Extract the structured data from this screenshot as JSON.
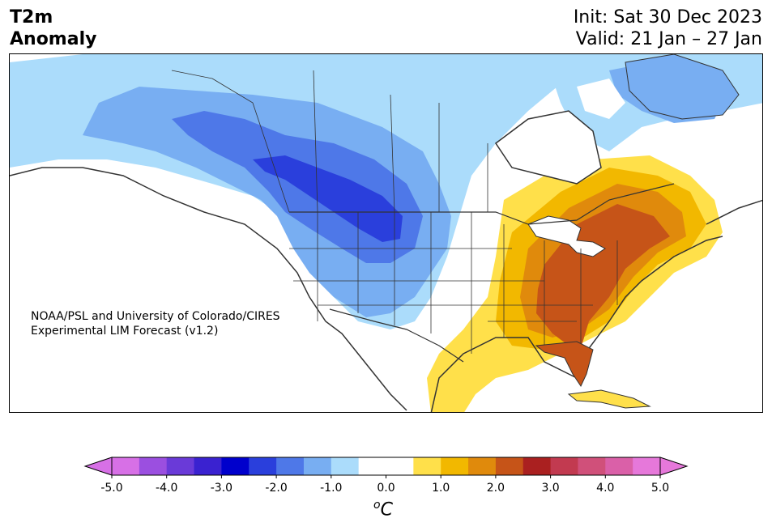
{
  "header": {
    "title_line1": "T2m",
    "title_line2": "Anomaly",
    "init": "Init: Sat 30 Dec 2023",
    "valid": "Valid: 21 Jan – 27 Jan"
  },
  "credit": {
    "line1": "NOAA/PSL and University of Colorado/CIRES",
    "line2": "Experimental LIM Forecast (v1.2)"
  },
  "colorbar": {
    "unit_sup": "o",
    "unit": "C",
    "tick_labels": [
      "-5.0",
      "-4.0",
      "-3.0",
      "-2.0",
      "-1.0",
      "0.0",
      "1.0",
      "2.0",
      "3.0",
      "4.0",
      "5.0"
    ],
    "colors": [
      "#d770e6",
      "#9b4fe0",
      "#6a3ad8",
      "#3a22d0",
      "#0000cc",
      "#2a3fdc",
      "#4e78e8",
      "#78aef2",
      "#abdcfb",
      "#ffffff",
      "#ffffff",
      "#ffe04a",
      "#f2b800",
      "#e08a0c",
      "#c65418",
      "#aa2020",
      "#c23a50",
      "#d0507a",
      "#da60a8",
      "#e678da"
    ]
  },
  "map_legend_colors": {
    "anomaly_minus_0_5": "#abdcfb",
    "anomaly_minus_1_0": "#78aef2",
    "anomaly_minus_1_5": "#4e78e8",
    "anomaly_minus_2_0": "#2a3fdc",
    "anomaly_plus_0_5": "#ffe04a",
    "anomaly_plus_1_0": "#f2b800",
    "anomaly_plus_1_5": "#e08a0c",
    "anomaly_plus_2_0": "#c65418"
  }
}
